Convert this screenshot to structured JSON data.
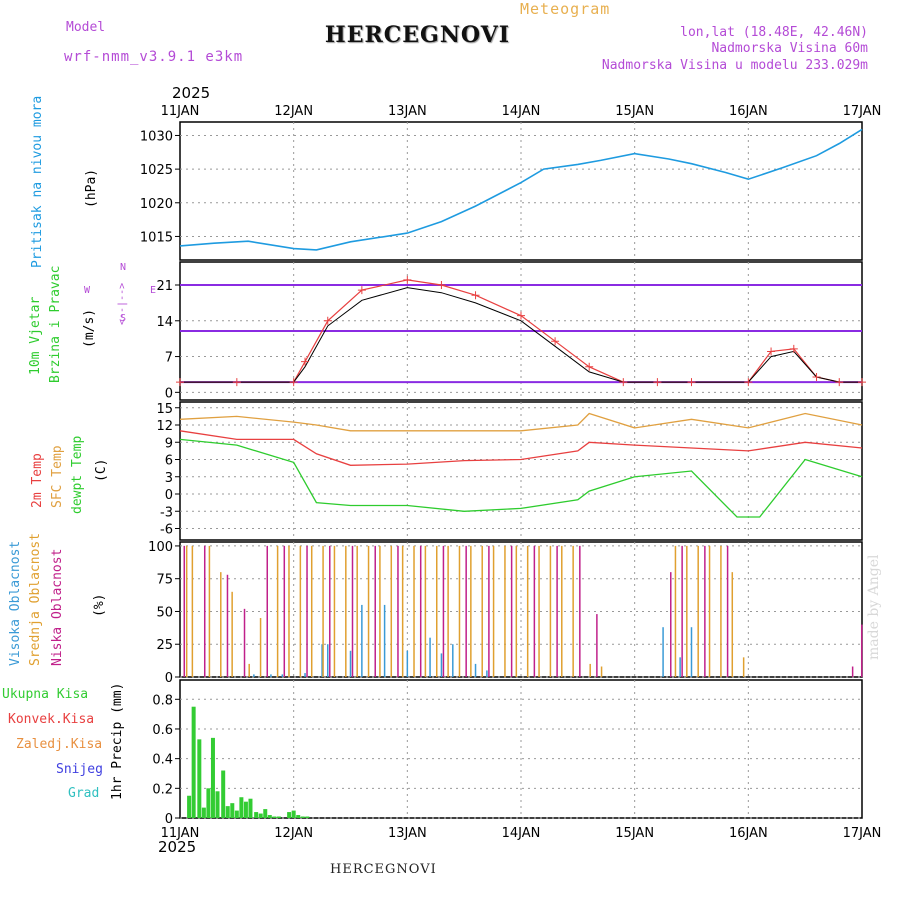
{
  "header": {
    "model_label": "Model",
    "model_name": "wrf-nmm_v3.9.1 e3km",
    "meteogram": "Meteogram",
    "location": "HERCEGNOVI",
    "lonlat": "lon,lat (18.48E, 42.46N)",
    "elevation": "Nadmorska Visina 60m",
    "model_elevation": "Nadmorska Visina u modelu 233.029m",
    "year_top": "2025",
    "year_bottom": "2025",
    "bottom_title": "HERCEGNOVI",
    "watermark": "made by Angel"
  },
  "colors": {
    "pressure": "#1e9be0",
    "temp2m": "#e84040",
    "sfc": "#e0a040",
    "dew": "#2ecc2e",
    "high_cloud": "#3a9ad6",
    "mid_cloud": "#e0a030",
    "low_cloud": "#c0208a",
    "precip": "#33cc33",
    "gust": "#e84040",
    "wind_barb": "#8a2be2"
  },
  "chart_data": [
    {
      "type": "line",
      "id": "pressure",
      "title": "Pritisak na nivou mora",
      "ylabel": "(hPa)",
      "x_categories": [
        "11JAN",
        "12JAN",
        "13JAN",
        "14JAN",
        "15JAN",
        "16JAN",
        "17JAN"
      ],
      "ylim": [
        1011.5,
        1032
      ],
      "yticks": [
        1015,
        1020,
        1025,
        1030
      ],
      "x": [
        0,
        0.3,
        0.6,
        1.0,
        1.2,
        1.5,
        2.0,
        2.3,
        2.6,
        3.0,
        3.2,
        3.5,
        3.7,
        4.0,
        4.3,
        4.5,
        4.8,
        5.0,
        5.3,
        5.6,
        5.8,
        6.0
      ],
      "values": [
        1013.6,
        1014.0,
        1014.3,
        1013.2,
        1013.0,
        1014.2,
        1015.5,
        1017.2,
        1019.5,
        1023.0,
        1025.0,
        1025.7,
        1026.3,
        1027.3,
        1026.5,
        1025.8,
        1024.5,
        1023.5,
        1025.2,
        1027.0,
        1028.8,
        1030.9
      ]
    },
    {
      "type": "line",
      "id": "wind",
      "title": "10m Vjetar",
      "subtitle": "Brzina i Pravac",
      "ylabel": "(m/s)",
      "compass": {
        "n": "N",
        "w": "W",
        "e": "E",
        "s": "S",
        "arrows": "<--|-->"
      },
      "ylim": [
        -1.5,
        25.5
      ],
      "yticks": [
        0,
        7,
        14,
        21
      ],
      "x": [
        0,
        0.5,
        1.0,
        1.1,
        1.3,
        1.6,
        2.0,
        2.3,
        2.6,
        3.0,
        3.3,
        3.6,
        3.9,
        4.2,
        4.5,
        5.0,
        5.2,
        5.4,
        5.6,
        5.8,
        6.0
      ],
      "speed": [
        2,
        2,
        2,
        5,
        13,
        18,
        20.5,
        19.5,
        17.5,
        14,
        9,
        4,
        2,
        2,
        2,
        2,
        7,
        8,
        3,
        2,
        2
      ],
      "gust": [
        2,
        2,
        2,
        6,
        14,
        20,
        22,
        21,
        19,
        15,
        10,
        5,
        2,
        2,
        2,
        2,
        8,
        8.5,
        3,
        2,
        2
      ]
    },
    {
      "type": "line",
      "id": "temperature",
      "ylabel": "(C)",
      "labels": [
        "2m Temp",
        "SFC Temp",
        "dewpt Temp"
      ],
      "ylim": [
        -8,
        16
      ],
      "yticks": [
        -6,
        -3,
        0,
        3,
        6,
        9,
        12,
        15
      ],
      "series": [
        {
          "name": "2m Temp",
          "x": [
            0,
            0.5,
            1.0,
            1.2,
            1.5,
            2.0,
            2.5,
            3.0,
            3.5,
            3.6,
            4.0,
            4.5,
            5.0,
            5.5,
            6.0
          ],
          "values": [
            11,
            9.5,
            9.5,
            7,
            5,
            5.2,
            5.8,
            6,
            7.5,
            9,
            8.5,
            8,
            7.5,
            9,
            8
          ]
        },
        {
          "name": "SFC Temp",
          "x": [
            0,
            0.5,
            1.0,
            1.2,
            1.5,
            2.0,
            2.5,
            3.0,
            3.5,
            3.6,
            4.0,
            4.5,
            5.0,
            5.5,
            6.0
          ],
          "values": [
            13,
            13.5,
            12.5,
            12,
            11,
            11,
            11,
            11,
            12,
            14,
            11.5,
            13,
            11.5,
            14,
            12
          ]
        },
        {
          "name": "dewpt Temp",
          "x": [
            0,
            0.5,
            1.0,
            1.2,
            1.5,
            2.0,
            2.5,
            3.0,
            3.5,
            3.6,
            4.0,
            4.5,
            4.9,
            5.1,
            5.5,
            6.0
          ],
          "values": [
            9.5,
            8.5,
            5.5,
            -1.5,
            -2,
            -2,
            -3,
            -2.5,
            -1,
            0.5,
            3,
            4,
            -4,
            -4,
            6,
            3
          ]
        }
      ]
    },
    {
      "type": "bar",
      "id": "clouds",
      "ylabel": "(%)",
      "labels": [
        "Visoka Oblacnost",
        "Srednja Oblacnost",
        "Niska Oblacnost"
      ],
      "ylim": [
        0,
        103
      ],
      "yticks": [
        0,
        25,
        50,
        75,
        100
      ],
      "series": [
        {
          "name": "Visoka Oblacnost",
          "x": [
            0.65,
            0.8,
            0.9,
            1.1,
            1.25,
            1.3,
            1.5,
            1.6,
            1.8,
            2.0,
            2.2,
            2.3,
            2.4,
            2.6,
            2.7,
            4.25,
            4.4,
            4.5
          ],
          "values": [
            2,
            2,
            2,
            3,
            25,
            25,
            20,
            55,
            55,
            20,
            30,
            18,
            25,
            10,
            5,
            38,
            15,
            38
          ]
        },
        {
          "name": "Srednja Oblacnost",
          "x": [
            0.05,
            0.1,
            0.25,
            0.35,
            0.45,
            0.6,
            0.7,
            0.85,
            0.95,
            1.05,
            1.15,
            1.25,
            1.35,
            1.45,
            1.55,
            1.65,
            1.75,
            1.85,
            1.95,
            2.05,
            2.15,
            2.25,
            2.35,
            2.45,
            2.55,
            2.65,
            2.75,
            2.85,
            2.95,
            3.05,
            3.15,
            3.25,
            3.35,
            3.45,
            3.6,
            3.7,
            4.35,
            4.45,
            4.55,
            4.65,
            4.75,
            4.85,
            4.95
          ],
          "values": [
            100,
            100,
            100,
            80,
            65,
            10,
            45,
            100,
            100,
            100,
            100,
            100,
            100,
            100,
            100,
            100,
            100,
            100,
            100,
            100,
            100,
            100,
            100,
            100,
            100,
            100,
            100,
            100,
            100,
            100,
            100,
            100,
            100,
            100,
            10,
            8,
            100,
            100,
            100,
            100,
            100,
            80,
            15
          ]
        },
        {
          "name": "Niska Oblacnost",
          "x": [
            0.02,
            0.2,
            0.4,
            0.55,
            0.75,
            0.9,
            1.1,
            1.3,
            1.5,
            1.7,
            1.9,
            2.1,
            2.3,
            2.5,
            2.7,
            2.9,
            3.1,
            3.3,
            3.5,
            3.65,
            4.3,
            4.4,
            4.6,
            4.8,
            5.9,
            5.98
          ],
          "values": [
            100,
            100,
            78,
            52,
            100,
            100,
            100,
            100,
            100,
            100,
            100,
            100,
            100,
            100,
            100,
            100,
            100,
            100,
            100,
            48,
            80,
            100,
            100,
            100,
            8,
            40
          ]
        }
      ]
    },
    {
      "type": "bar",
      "id": "precip",
      "ylabel": "1hr Precip (mm)",
      "labels": [
        "Ukupna Kisa",
        "Konvek.Kisa",
        "Zaledj.Kisa",
        "Snijeg",
        "Grad"
      ],
      "label_colors": [
        "#33cc33",
        "#e84040",
        "#e89040",
        "#4040e0",
        "#30c0c0"
      ],
      "ylim": [
        0,
        0.93
      ],
      "yticks": [
        0,
        0.2,
        0.4,
        0.6,
        0.8
      ],
      "x": [
        0.08,
        0.12,
        0.17,
        0.21,
        0.25,
        0.29,
        0.33,
        0.38,
        0.42,
        0.46,
        0.5,
        0.54,
        0.58,
        0.62,
        0.67,
        0.71,
        0.75,
        0.79,
        0.83,
        0.87,
        0.96,
        1.0,
        1.04,
        1.08,
        1.12
      ],
      "values": [
        0.15,
        0.75,
        0.53,
        0.07,
        0.2,
        0.54,
        0.18,
        0.32,
        0.08,
        0.1,
        0.05,
        0.14,
        0.11,
        0.13,
        0.04,
        0.03,
        0.06,
        0.02,
        0.01,
        0.01,
        0.04,
        0.05,
        0.02,
        0.01,
        0.01
      ]
    }
  ]
}
